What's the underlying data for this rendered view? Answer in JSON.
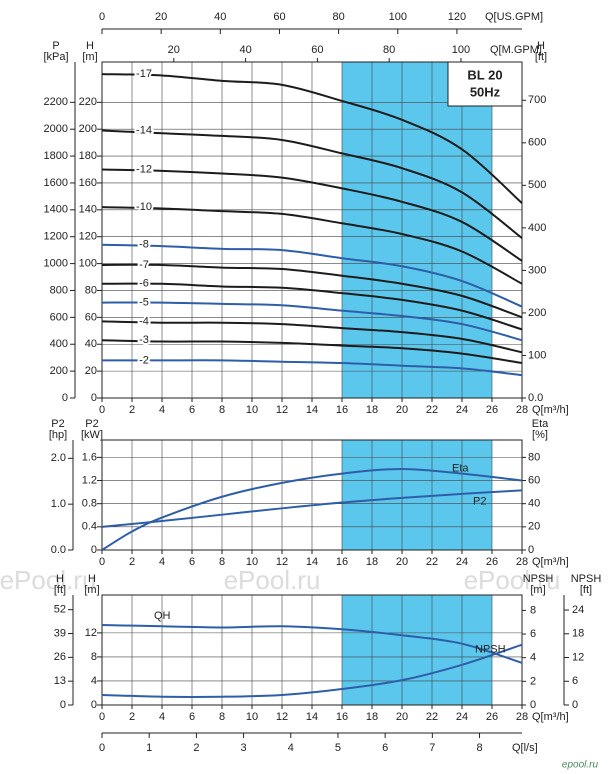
{
  "chart_data": [
    {
      "type": "line",
      "title": "BL 20",
      "subtitle": "50Hz",
      "xlabel": "Q[m³/h]",
      "x": [
        0,
        4,
        8,
        12,
        16,
        20,
        24,
        28
      ],
      "xlim": [
        0,
        28
      ],
      "xticks": [
        0,
        2,
        4,
        6,
        8,
        10,
        12,
        14,
        16,
        18,
        20,
        22,
        24,
        26,
        28
      ],
      "x2label": "Q[M.GPM]",
      "x2lim": [
        0,
        117
      ],
      "x2ticks": [
        20,
        40,
        60,
        80,
        100
      ],
      "x3label": "Q[US.GPM]",
      "x3lim": [
        0,
        142
      ],
      "x3ticks": [
        0,
        20,
        40,
        60,
        80,
        100,
        120
      ],
      "ylabel": [
        "H",
        "[m]"
      ],
      "ylim": [
        0,
        250
      ],
      "yticks": [
        0,
        20,
        40,
        60,
        80,
        100,
        120,
        140,
        160,
        180,
        200,
        220
      ],
      "y2label": [
        "H",
        "[ft]"
      ],
      "y2lim": [
        0,
        790
      ],
      "y2ticks": [
        {
          "value": 0,
          "label": "0.0"
        },
        100,
        200,
        300,
        400,
        500,
        600,
        700
      ],
      "y3label": [
        "P",
        "[kPa]"
      ],
      "y3lim": [
        0,
        2500
      ],
      "y3ticks": [
        0,
        200,
        400,
        600,
        800,
        1000,
        1200,
        1400,
        1600,
        1800,
        2000,
        2200
      ],
      "band": [
        16,
        26
      ],
      "grid": true,
      "series": [
        {
          "name": "-17",
          "color": "#1c1c1c",
          "values": [
            241,
            240,
            236,
            233,
            221,
            207,
            185,
            145
          ]
        },
        {
          "name": "-14",
          "color": "#1c1c1c",
          "values": [
            199,
            197,
            195,
            192,
            182,
            171,
            153,
            119
          ]
        },
        {
          "name": "-12",
          "color": "#1c1c1c",
          "values": [
            170,
            169,
            167,
            164,
            156,
            146,
            131,
            102
          ]
        },
        {
          "name": "-10",
          "color": "#1c1c1c",
          "values": [
            142,
            141,
            139,
            137,
            130,
            122,
            109,
            85
          ]
        },
        {
          "name": "-8",
          "color": "#2e5ea8",
          "values": [
            114,
            113,
            111,
            110,
            104,
            98,
            87,
            68
          ]
        },
        {
          "name": "-7",
          "color": "#1c1c1c",
          "values": [
            99,
            99,
            97,
            96,
            91,
            85,
            76,
            60
          ]
        },
        {
          "name": "-6",
          "color": "#1c1c1c",
          "values": [
            85,
            85,
            83,
            82,
            78,
            73,
            65,
            51
          ]
        },
        {
          "name": "-5",
          "color": "#2e5ea8",
          "values": [
            71,
            71,
            70,
            69,
            65,
            61,
            55,
            43
          ]
        },
        {
          "name": "-4",
          "color": "#1c1c1c",
          "values": [
            57,
            56,
            56,
            55,
            52,
            49,
            44,
            34
          ]
        },
        {
          "name": "-3",
          "color": "#1c1c1c",
          "values": [
            43,
            42,
            42,
            41,
            39,
            37,
            33,
            26
          ]
        },
        {
          "name": "-2",
          "color": "#2e5ea8",
          "values": [
            28,
            28,
            28,
            27,
            26,
            24,
            22,
            17
          ]
        }
      ]
    },
    {
      "type": "line",
      "xlabel": "Q[m³/h]",
      "x": [
        0,
        2,
        4,
        8,
        12,
        16,
        20,
        24,
        28
      ],
      "xlim": [
        0,
        28
      ],
      "xticks": [
        0,
        2,
        4,
        6,
        8,
        10,
        12,
        14,
        16,
        18,
        20,
        22,
        24,
        26,
        28
      ],
      "ylabel": [
        "P2",
        "[kW]"
      ],
      "ylim": [
        0,
        1.9
      ],
      "yticks": [
        0,
        0.4,
        0.8,
        1.2,
        1.6
      ],
      "y2label": [
        "Eta",
        "[%]"
      ],
      "y2lim": [
        0,
        95
      ],
      "y2ticks": [
        0,
        20,
        40,
        60,
        80
      ],
      "y3label": [
        "P2",
        "[hp]"
      ],
      "y3lim": [
        0,
        2.4
      ],
      "y3ticks": [
        {
          "value": 0,
          "label": "0.0"
        },
        {
          "value": 1,
          "label": "1.0"
        },
        {
          "value": 2,
          "label": "2.0"
        }
      ],
      "band": [
        16,
        26
      ],
      "grid": true,
      "series": [
        {
          "name": "P2",
          "color": "#2e5ea8",
          "values": [
            0.4,
            0.45,
            0.5,
            0.61,
            0.72,
            0.82,
            0.9,
            0.97,
            1.03
          ]
        },
        {
          "name": "Eta",
          "color": "#2e5ea8",
          "axis": "y2",
          "values": [
            0,
            16,
            28,
            46,
            58,
            66,
            70,
            66,
            60
          ]
        }
      ]
    },
    {
      "type": "line",
      "xlabel": "Q[m³/h]",
      "x": [
        0,
        4,
        8,
        12,
        16,
        20,
        24,
        28
      ],
      "xlim": [
        0,
        28
      ],
      "xticks": [
        0,
        2,
        4,
        6,
        8,
        10,
        12,
        14,
        16,
        18,
        20,
        22,
        24,
        26,
        28
      ],
      "x2label": "Q[l/s]",
      "x2lim": [
        0,
        8.9
      ],
      "x2ticks": [
        0,
        1,
        2,
        3,
        4,
        5,
        6,
        7,
        8
      ],
      "ylabel": [
        "H",
        "[m]"
      ],
      "ylim": [
        0,
        18.3
      ],
      "yticks": [
        0,
        4,
        8,
        12
      ],
      "y2label": [
        "NPSH",
        "[m]"
      ],
      "y2lim": [
        0,
        9.3
      ],
      "y2ticks": [
        0,
        2,
        4,
        6,
        8
      ],
      "y3label": [
        "H",
        "[ft]"
      ],
      "y3lim": [
        0,
        60
      ],
      "y3ticks": [
        0,
        13,
        26,
        39,
        52
      ],
      "y4label": [
        "NPSH",
        "[ft]"
      ],
      "y4lim": [
        0,
        27.8
      ],
      "y4ticks": [
        0,
        6,
        12,
        18,
        24
      ],
      "band": [
        16,
        26
      ],
      "grid": true,
      "series": [
        {
          "name": "QH",
          "color": "#2e5ea8",
          "values": [
            13.3,
            13.1,
            12.9,
            13.1,
            12.6,
            11.6,
            10.2,
            7.0
          ]
        },
        {
          "name": "NPSH",
          "color": "#2e5ea8",
          "axis": "y2",
          "values": [
            0.85,
            0.7,
            0.7,
            0.85,
            1.35,
            2.1,
            3.4,
            5.1
          ]
        }
      ]
    }
  ],
  "watermark": "ePool.ru",
  "logo": "epool.ru"
}
